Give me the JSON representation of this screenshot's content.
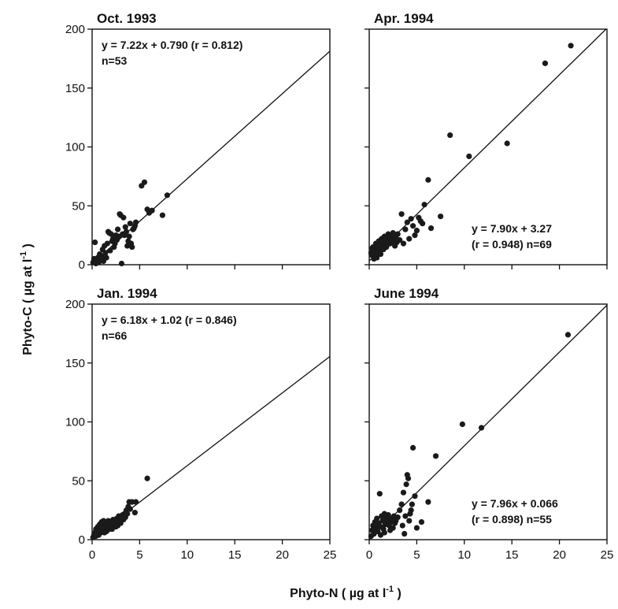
{
  "chart_data": [
    {
      "type": "scatter",
      "title": "Oct. 1993",
      "equation": "y = 7.22x + 0.790 (r = 0.812)",
      "n_label": "n=53",
      "regression": {
        "slope": 7.22,
        "intercept": 0.79
      },
      "xlim": [
        0,
        25
      ],
      "ylim": [
        0,
        200
      ],
      "xticks": [
        0,
        5,
        10,
        15,
        20,
        25
      ],
      "yticks": [
        0,
        50,
        100,
        150,
        200
      ],
      "points": [
        [
          0.1,
          2
        ],
        [
          0.2,
          5
        ],
        [
          0.3,
          19
        ],
        [
          0.4,
          1
        ],
        [
          0.5,
          3
        ],
        [
          0.6,
          6
        ],
        [
          0.7,
          2
        ],
        [
          0.8,
          9
        ],
        [
          0.9,
          4
        ],
        [
          1.0,
          7
        ],
        [
          1.1,
          13
        ],
        [
          1.2,
          3
        ],
        [
          1.3,
          16
        ],
        [
          1.4,
          10
        ],
        [
          1.5,
          6
        ],
        [
          1.6,
          18
        ],
        [
          1.7,
          28
        ],
        [
          1.8,
          27
        ],
        [
          1.9,
          12
        ],
        [
          2.0,
          26
        ],
        [
          2.1,
          20
        ],
        [
          2.2,
          22
        ],
        [
          2.3,
          15
        ],
        [
          2.4,
          18
        ],
        [
          2.5,
          25
        ],
        [
          2.6,
          21
        ],
        [
          2.7,
          30
        ],
        [
          2.8,
          24
        ],
        [
          2.9,
          43
        ],
        [
          3.0,
          42
        ],
        [
          3.1,
          1
        ],
        [
          3.2,
          26
        ],
        [
          3.3,
          40
        ],
        [
          3.4,
          25
        ],
        [
          3.5,
          32
        ],
        [
          3.6,
          28
        ],
        [
          3.7,
          16
        ],
        [
          3.8,
          20
        ],
        [
          3.9,
          24
        ],
        [
          4.0,
          35
        ],
        [
          4.1,
          18
        ],
        [
          4.2,
          15
        ],
        [
          4.3,
          30
        ],
        [
          4.4,
          31
        ],
        [
          4.5,
          33
        ],
        [
          4.6,
          36
        ],
        [
          5.2,
          67
        ],
        [
          5.5,
          70
        ],
        [
          5.8,
          47
        ],
        [
          6.0,
          44
        ],
        [
          6.3,
          46
        ],
        [
          7.4,
          42
        ],
        [
          7.9,
          59
        ]
      ]
    },
    {
      "type": "scatter",
      "title": "Apr. 1994",
      "equation_line1": "y = 7.90x + 3.27",
      "equation_line2": "(r = 0.948) n=69",
      "regression": {
        "slope": 7.9,
        "intercept": 3.27
      },
      "xlim": [
        0,
        25
      ],
      "ylim": [
        0,
        200
      ],
      "xticks": [
        0,
        5,
        10,
        15,
        20,
        25
      ],
      "yticks": [
        0,
        50,
        100,
        150,
        200
      ],
      "points": [
        [
          0.2,
          10
        ],
        [
          0.3,
          8
        ],
        [
          0.4,
          15
        ],
        [
          0.5,
          5
        ],
        [
          0.6,
          12
        ],
        [
          0.7,
          18
        ],
        [
          0.8,
          14
        ],
        [
          0.9,
          11
        ],
        [
          1.0,
          20
        ],
        [
          1.1,
          16
        ],
        [
          1.2,
          9
        ],
        [
          1.3,
          22
        ],
        [
          1.4,
          17
        ],
        [
          1.5,
          13
        ],
        [
          1.6,
          24
        ],
        [
          1.7,
          19
        ],
        [
          1.8,
          15
        ],
        [
          1.9,
          21
        ],
        [
          2.0,
          26
        ],
        [
          2.1,
          23
        ],
        [
          2.2,
          18
        ],
        [
          2.3,
          25
        ],
        [
          2.4,
          20
        ],
        [
          2.5,
          27
        ],
        [
          2.6,
          22
        ],
        [
          2.7,
          16
        ],
        [
          2.8,
          24
        ],
        [
          2.9,
          19
        ],
        [
          3.0,
          26
        ],
        [
          3.2,
          21
        ],
        [
          3.4,
          43
        ],
        [
          3.6,
          18
        ],
        [
          3.8,
          30
        ],
        [
          4.0,
          36
        ],
        [
          4.2,
          22
        ],
        [
          4.4,
          39
        ],
        [
          4.6,
          33
        ],
        [
          4.8,
          25
        ],
        [
          5.0,
          29
        ],
        [
          5.2,
          40
        ],
        [
          5.4,
          37
        ],
        [
          5.6,
          35
        ],
        [
          5.8,
          51
        ],
        [
          6.2,
          72
        ],
        [
          6.5,
          31
        ],
        [
          7.5,
          41
        ],
        [
          8.5,
          110
        ],
        [
          10.5,
          92
        ],
        [
          14.5,
          103
        ],
        [
          18.5,
          171
        ],
        [
          21.2,
          186
        ],
        [
          0.3,
          14
        ],
        [
          0.5,
          12
        ],
        [
          0.7,
          10
        ],
        [
          0.9,
          17
        ],
        [
          1.1,
          13
        ],
        [
          1.3,
          19
        ],
        [
          1.5,
          22
        ],
        [
          1.7,
          21
        ],
        [
          1.9,
          17
        ],
        [
          2.1,
          19
        ],
        [
          2.3,
          22
        ],
        [
          2.5,
          24
        ],
        [
          2.7,
          20
        ],
        [
          0.6,
          7
        ],
        [
          0.8,
          6
        ],
        [
          1.0,
          9
        ],
        [
          1.2,
          12
        ],
        [
          1.4,
          15
        ]
      ]
    },
    {
      "type": "scatter",
      "title": "Jan. 1994",
      "equation": "y = 6.18x + 1.02 (r = 0.846)",
      "n_label": "n=66",
      "regression": {
        "slope": 6.18,
        "intercept": 1.02
      },
      "xlim": [
        0,
        25
      ],
      "ylim": [
        0,
        200
      ],
      "xticks": [
        0,
        5,
        10,
        15,
        20,
        25
      ],
      "yticks": [
        0,
        50,
        100,
        150,
        200
      ],
      "points": [
        [
          0.1,
          2
        ],
        [
          0.2,
          4
        ],
        [
          0.3,
          6
        ],
        [
          0.4,
          3
        ],
        [
          0.5,
          8
        ],
        [
          0.6,
          5
        ],
        [
          0.7,
          10
        ],
        [
          0.8,
          7
        ],
        [
          0.9,
          12
        ],
        [
          1.0,
          9
        ],
        [
          1.1,
          14
        ],
        [
          1.2,
          11
        ],
        [
          1.3,
          6
        ],
        [
          1.4,
          15
        ],
        [
          1.5,
          13
        ],
        [
          1.6,
          8
        ],
        [
          1.7,
          16
        ],
        [
          1.8,
          12
        ],
        [
          1.9,
          10
        ],
        [
          2.0,
          14
        ],
        [
          2.1,
          9
        ],
        [
          2.2,
          17
        ],
        [
          2.3,
          11
        ],
        [
          2.4,
          13
        ],
        [
          2.5,
          15
        ],
        [
          2.6,
          18
        ],
        [
          2.7,
          12
        ],
        [
          2.8,
          20
        ],
        [
          2.9,
          16
        ],
        [
          3.0,
          14
        ],
        [
          3.1,
          18
        ],
        [
          3.2,
          21
        ],
        [
          3.3,
          17
        ],
        [
          3.4,
          22
        ],
        [
          3.5,
          19
        ],
        [
          3.6,
          25
        ],
        [
          3.7,
          22
        ],
        [
          3.8,
          28
        ],
        [
          3.9,
          32
        ],
        [
          4.0,
          26
        ],
        [
          4.2,
          32
        ],
        [
          4.5,
          23
        ],
        [
          4.6,
          32
        ],
        [
          5.8,
          52
        ],
        [
          0.3,
          3
        ],
        [
          0.5,
          5
        ],
        [
          0.7,
          4
        ],
        [
          0.9,
          6
        ],
        [
          1.1,
          8
        ],
        [
          1.3,
          10
        ],
        [
          1.5,
          7
        ],
        [
          1.7,
          12
        ],
        [
          1.9,
          15
        ],
        [
          2.1,
          13
        ],
        [
          2.3,
          16
        ],
        [
          2.5,
          11
        ],
        [
          0.4,
          9
        ],
        [
          0.6,
          11
        ],
        [
          0.8,
          13
        ],
        [
          1.0,
          15
        ],
        [
          1.2,
          16
        ],
        [
          1.4,
          12
        ],
        [
          1.6,
          14
        ],
        [
          1.8,
          9
        ],
        [
          2.0,
          11
        ],
        [
          2.2,
          13
        ]
      ]
    },
    {
      "type": "scatter",
      "title": "June 1994",
      "equation_line1": "y = 7.96x + 0.066",
      "equation_line2": "(r = 0.898) n=55",
      "regression": {
        "slope": 7.96,
        "intercept": 0.066
      },
      "xlim": [
        0,
        25
      ],
      "ylim": [
        0,
        200
      ],
      "xticks": [
        0,
        5,
        10,
        15,
        20,
        25
      ],
      "yticks": [
        0,
        50,
        100,
        150,
        200
      ],
      "points": [
        [
          0.2,
          3
        ],
        [
          0.3,
          8
        ],
        [
          0.4,
          12
        ],
        [
          0.5,
          5
        ],
        [
          0.6,
          15
        ],
        [
          0.7,
          10
        ],
        [
          0.8,
          18
        ],
        [
          0.9,
          7
        ],
        [
          1.0,
          14
        ],
        [
          1.1,
          39
        ],
        [
          1.2,
          11
        ],
        [
          1.3,
          20
        ],
        [
          1.4,
          16
        ],
        [
          1.5,
          9
        ],
        [
          1.6,
          22
        ],
        [
          1.7,
          13
        ],
        [
          1.8,
          19
        ],
        [
          1.9,
          17
        ],
        [
          2.0,
          21
        ],
        [
          2.1,
          12
        ],
        [
          2.2,
          8
        ],
        [
          2.3,
          15
        ],
        [
          2.4,
          18
        ],
        [
          2.5,
          10
        ],
        [
          2.6,
          20
        ],
        [
          2.7,
          14
        ],
        [
          2.8,
          16
        ],
        [
          3.0,
          19
        ],
        [
          3.2,
          25
        ],
        [
          3.4,
          30
        ],
        [
          3.5,
          12
        ],
        [
          3.6,
          40
        ],
        [
          3.7,
          5
        ],
        [
          3.8,
          20
        ],
        [
          3.9,
          47
        ],
        [
          4.0,
          55
        ],
        [
          4.1,
          52
        ],
        [
          4.2,
          16
        ],
        [
          4.3,
          22
        ],
        [
          4.4,
          25
        ],
        [
          4.5,
          30
        ],
        [
          4.6,
          78
        ],
        [
          4.8,
          37
        ],
        [
          5.0,
          10
        ],
        [
          5.5,
          15
        ],
        [
          6.2,
          32
        ],
        [
          7.0,
          71
        ],
        [
          9.8,
          98
        ],
        [
          11.8,
          95
        ],
        [
          20.9,
          174
        ],
        [
          0.5,
          6
        ],
        [
          0.8,
          12
        ],
        [
          1.2,
          4
        ],
        [
          1.6,
          6
        ],
        [
          2.0,
          14
        ]
      ]
    }
  ],
  "axes": {
    "ylabel": "Phyto-C (  µg at l",
    "ylabel_sup": "-1",
    "ylabel_end": " )",
    "xlabel": "Phyto-N (  µg at l",
    "xlabel_sup": "-1",
    "xlabel_end": "  )"
  }
}
